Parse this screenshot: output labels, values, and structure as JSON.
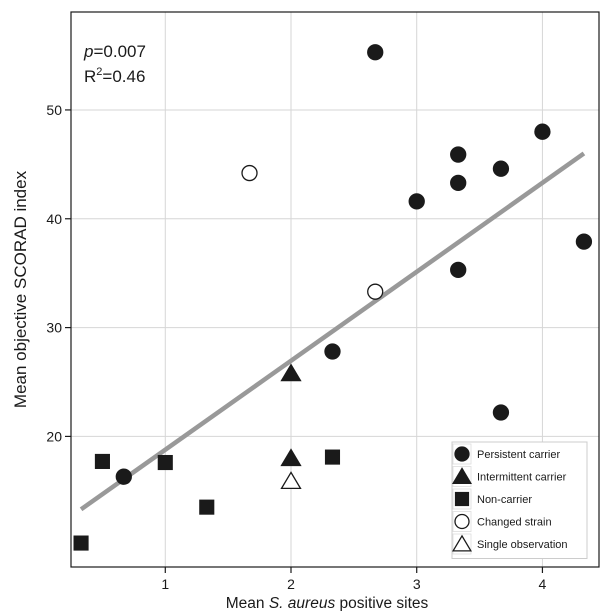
{
  "chart_data": {
    "type": "scatter",
    "xlabel_prefix": "Mean ",
    "xlabel_italic": "S. aureus",
    "xlabel_suffix": " positive sites",
    "ylabel": "Mean objective SCORAD index",
    "xlim": [
      0.25,
      4.45
    ],
    "ylim": [
      8,
      59
    ],
    "xticks": [
      1,
      2,
      3,
      4
    ],
    "yticks": [
      20,
      30,
      40,
      50
    ],
    "grid": true,
    "annotation_p": "p",
    "annotation_p_value": "=0.007",
    "annotation_r2_prefix": "R",
    "annotation_r2_sup": "2",
    "annotation_r2_value": "=0.46",
    "fit_line": {
      "x": [
        0.33,
        4.33
      ],
      "y": [
        13.3,
        46.0
      ],
      "color": "#999999"
    },
    "legend_position": "bottom-right",
    "series": [
      {
        "name": "Persistent carrier",
        "marker": "circle-filled",
        "x": [
          0.67,
          2.33,
          2.67,
          3.0,
          3.33,
          3.33,
          3.33,
          3.67,
          3.67,
          4.0,
          4.33
        ],
        "y": [
          16.3,
          27.8,
          55.3,
          41.6,
          45.9,
          43.3,
          35.3,
          44.6,
          22.2,
          48.0,
          37.9
        ]
      },
      {
        "name": "Intermittent carrier",
        "marker": "triangle-filled",
        "x": [
          2.0,
          2.0
        ],
        "y": [
          25.8,
          18.0
        ]
      },
      {
        "name": "Non-carrier",
        "marker": "square-filled",
        "x": [
          0.33,
          0.5,
          1.0,
          1.33,
          2.33
        ],
        "y": [
          10.2,
          17.7,
          17.6,
          13.5,
          18.1
        ]
      },
      {
        "name": "Changed strain",
        "marker": "circle-open",
        "x": [
          1.67,
          2.67
        ],
        "y": [
          44.2,
          33.3
        ]
      },
      {
        "name": "Single observation",
        "marker": "triangle-open",
        "x": [
          2.0
        ],
        "y": [
          15.9
        ]
      }
    ]
  }
}
